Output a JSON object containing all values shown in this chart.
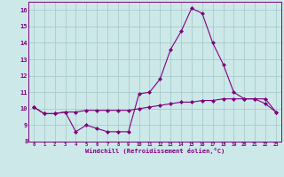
{
  "x": [
    0,
    1,
    2,
    3,
    4,
    5,
    6,
    7,
    8,
    9,
    10,
    11,
    12,
    13,
    14,
    15,
    16,
    17,
    18,
    19,
    20,
    21,
    22,
    23
  ],
  "line1": [
    10.1,
    9.7,
    9.7,
    9.8,
    8.6,
    9.0,
    8.8,
    8.6,
    8.6,
    8.6,
    10.9,
    11.0,
    11.8,
    13.6,
    14.7,
    16.1,
    15.8,
    14.0,
    12.7,
    11.0,
    10.6,
    10.6,
    10.3,
    9.8
  ],
  "line2": [
    10.1,
    9.7,
    9.7,
    9.8,
    9.8,
    9.9,
    9.9,
    9.9,
    9.9,
    9.9,
    10.0,
    10.1,
    10.2,
    10.3,
    10.4,
    10.4,
    10.5,
    10.5,
    10.6,
    10.6,
    10.6,
    10.6,
    10.6,
    9.8
  ],
  "line_color": "#800080",
  "bg_color": "#cce8e8",
  "grid_color": "#aacccc",
  "xlabel": "Windchill (Refroidissement éolien,°C)",
  "ylim": [
    8,
    16.5
  ],
  "xlim": [
    -0.5,
    23.5
  ],
  "yticks": [
    8,
    9,
    10,
    11,
    12,
    13,
    14,
    15,
    16
  ],
  "xticks": [
    0,
    1,
    2,
    3,
    4,
    5,
    6,
    7,
    8,
    9,
    10,
    11,
    12,
    13,
    14,
    15,
    16,
    17,
    18,
    19,
    20,
    21,
    22,
    23
  ],
  "tick_color": "#800080",
  "marker": "D",
  "markersize": 2.0,
  "linewidth": 0.8
}
